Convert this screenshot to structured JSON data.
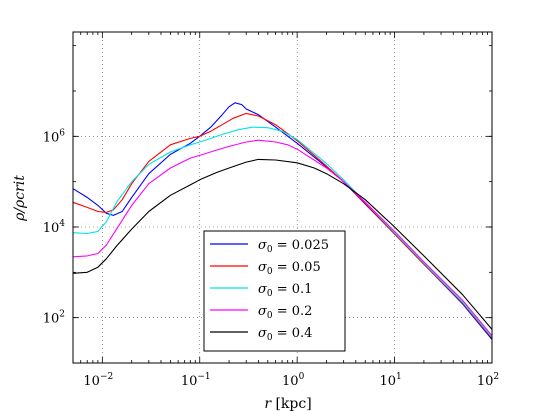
{
  "chart_data": {
    "type": "line",
    "xscale": "log",
    "yscale": "log",
    "xlim": [
      0.005,
      100
    ],
    "ylim": [
      10,
      200000000
    ],
    "grid": true,
    "legend_position": "lower-center",
    "xlabel_symbol": "r",
    "xlabel_unit": "[kpc]",
    "ylabel": "ρ/ρcrit",
    "xticks": [
      {
        "base": "10",
        "exp": "−2",
        "value": 0.01
      },
      {
        "base": "10",
        "exp": "−1",
        "value": 0.1
      },
      {
        "base": "10",
        "exp": "0",
        "value": 1
      },
      {
        "base": "10",
        "exp": "1",
        "value": 10
      },
      {
        "base": "10",
        "exp": "2",
        "value": 100
      }
    ],
    "yticks": [
      {
        "base": "10",
        "exp": "2",
        "value": 100
      },
      {
        "base": "10",
        "exp": "4",
        "value": 10000
      },
      {
        "base": "10",
        "exp": "6",
        "value": 1000000
      }
    ],
    "series": [
      {
        "name": "σ0 = 0.025",
        "color": "#0000ff",
        "points": [
          [
            0.005,
            70000
          ],
          [
            0.007,
            45000
          ],
          [
            0.009,
            30000
          ],
          [
            0.011,
            20000
          ],
          [
            0.013,
            18000
          ],
          [
            0.016,
            22000
          ],
          [
            0.02,
            45000
          ],
          [
            0.03,
            150000
          ],
          [
            0.05,
            400000
          ],
          [
            0.08,
            700000
          ],
          [
            0.1,
            1000000
          ],
          [
            0.13,
            1600000
          ],
          [
            0.17,
            3000000
          ],
          [
            0.2,
            4500000
          ],
          [
            0.23,
            5500000
          ],
          [
            0.27,
            5000000
          ],
          [
            0.3,
            4000000
          ],
          [
            0.4,
            3000000
          ],
          [
            0.6,
            1600000
          ],
          [
            1,
            700000
          ],
          [
            2,
            210000
          ],
          [
            3,
            100000
          ],
          [
            5,
            32000
          ],
          [
            10,
            7000
          ],
          [
            20,
            1500
          ],
          [
            50,
            200
          ],
          [
            100,
            33
          ]
        ]
      },
      {
        "name": "σ0 = 0.05",
        "color": "#ff0000",
        "points": [
          [
            0.005,
            35000
          ],
          [
            0.007,
            27000
          ],
          [
            0.009,
            22000
          ],
          [
            0.011,
            21000
          ],
          [
            0.013,
            24000
          ],
          [
            0.016,
            40000
          ],
          [
            0.02,
            90000
          ],
          [
            0.03,
            280000
          ],
          [
            0.05,
            650000
          ],
          [
            0.08,
            900000
          ],
          [
            0.1,
            1000000
          ],
          [
            0.13,
            1300000
          ],
          [
            0.17,
            1800000
          ],
          [
            0.22,
            2500000
          ],
          [
            0.3,
            3200000
          ],
          [
            0.4,
            2800000
          ],
          [
            0.6,
            1800000
          ],
          [
            1,
            800000
          ],
          [
            2,
            220000
          ],
          [
            3,
            100000
          ],
          [
            5,
            33000
          ],
          [
            10,
            7000
          ],
          [
            20,
            1500
          ],
          [
            50,
            210
          ],
          [
            100,
            35
          ]
        ]
      },
      {
        "name": "σ0 = 0.1",
        "color": "#00e5e5",
        "points": [
          [
            0.005,
            7500
          ],
          [
            0.007,
            7200
          ],
          [
            0.009,
            8000
          ],
          [
            0.011,
            13000
          ],
          [
            0.014,
            35000
          ],
          [
            0.02,
            100000
          ],
          [
            0.03,
            240000
          ],
          [
            0.05,
            450000
          ],
          [
            0.08,
            650000
          ],
          [
            0.1,
            750000
          ],
          [
            0.13,
            900000
          ],
          [
            0.17,
            1100000
          ],
          [
            0.25,
            1400000
          ],
          [
            0.35,
            1600000
          ],
          [
            0.5,
            1550000
          ],
          [
            0.7,
            1300000
          ],
          [
            1,
            850000
          ],
          [
            2,
            250000
          ],
          [
            3,
            110000
          ],
          [
            5,
            35000
          ],
          [
            10,
            7500
          ],
          [
            20,
            1600
          ],
          [
            50,
            220
          ],
          [
            100,
            37
          ]
        ]
      },
      {
        "name": "σ0 = 0.2",
        "color": "#ff00ff",
        "points": [
          [
            0.005,
            2200
          ],
          [
            0.007,
            2300
          ],
          [
            0.009,
            2600
          ],
          [
            0.011,
            4000
          ],
          [
            0.014,
            9000
          ],
          [
            0.02,
            30000
          ],
          [
            0.03,
            90000
          ],
          [
            0.05,
            200000
          ],
          [
            0.08,
            330000
          ],
          [
            0.1,
            380000
          ],
          [
            0.15,
            500000
          ],
          [
            0.2,
            600000
          ],
          [
            0.3,
            750000
          ],
          [
            0.4,
            820000
          ],
          [
            0.6,
            750000
          ],
          [
            0.8,
            650000
          ],
          [
            1,
            520000
          ],
          [
            2,
            200000
          ],
          [
            3,
            100000
          ],
          [
            5,
            35000
          ],
          [
            10,
            8000
          ],
          [
            20,
            1700
          ],
          [
            50,
            240
          ],
          [
            100,
            40
          ]
        ]
      },
      {
        "name": "σ0 = 0.4",
        "color": "#000000",
        "points": [
          [
            0.005,
            950
          ],
          [
            0.007,
            1000
          ],
          [
            0.009,
            1300
          ],
          [
            0.011,
            2000
          ],
          [
            0.014,
            3800
          ],
          [
            0.02,
            9000
          ],
          [
            0.03,
            22000
          ],
          [
            0.05,
            50000
          ],
          [
            0.08,
            85000
          ],
          [
            0.1,
            110000
          ],
          [
            0.15,
            160000
          ],
          [
            0.2,
            200000
          ],
          [
            0.3,
            270000
          ],
          [
            0.4,
            310000
          ],
          [
            0.6,
            300000
          ],
          [
            1,
            260000
          ],
          [
            1.5,
            200000
          ],
          [
            2,
            150000
          ],
          [
            3,
            90000
          ],
          [
            5,
            40000
          ],
          [
            10,
            10000
          ],
          [
            20,
            2300
          ],
          [
            50,
            320
          ],
          [
            100,
            55
          ]
        ]
      }
    ],
    "legend": [
      {
        "sym": "σ",
        "sub": "0",
        "val": " = 0.025"
      },
      {
        "sym": "σ",
        "sub": "0",
        "val": " = 0.05"
      },
      {
        "sym": "σ",
        "sub": "0",
        "val": " = 0.1"
      },
      {
        "sym": "σ",
        "sub": "0",
        "val": " = 0.2"
      },
      {
        "sym": "σ",
        "sub": "0",
        "val": " = 0.4"
      }
    ]
  }
}
